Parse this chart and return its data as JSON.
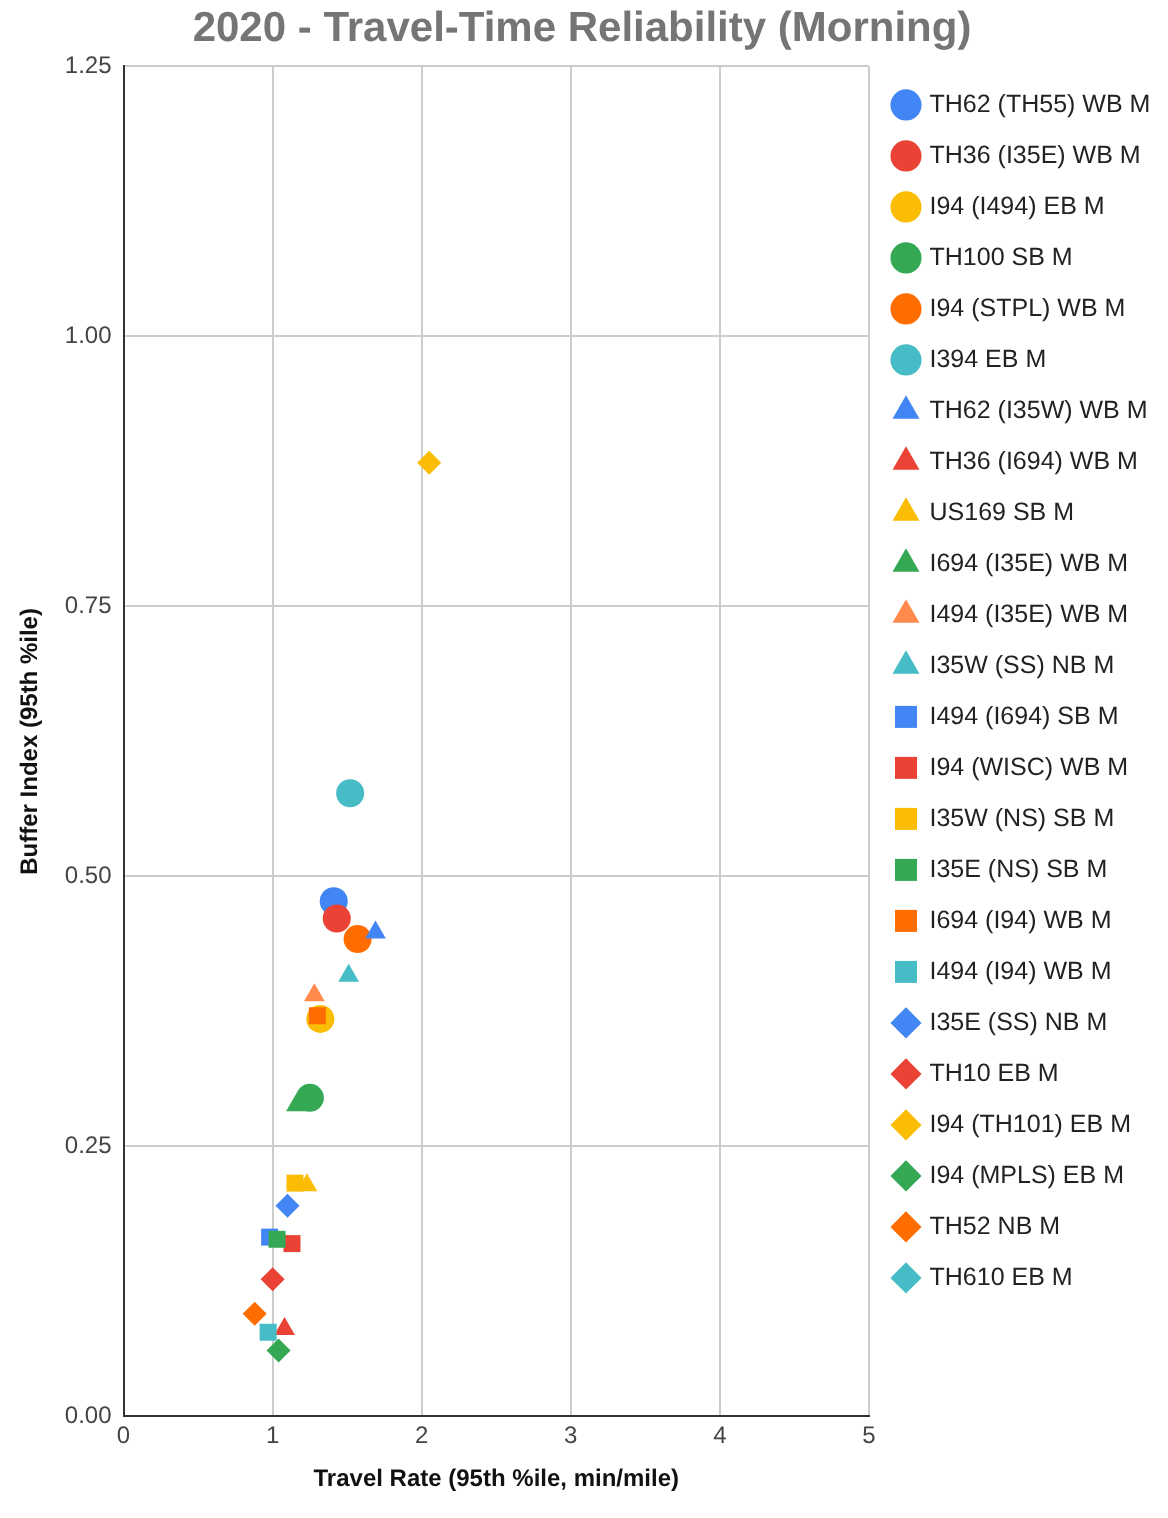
{
  "chart_data": {
    "type": "scatter",
    "title": "2020 - Travel-Time Reliability (Morning)",
    "xlabel": "Travel Rate (95th %ile, min/mile)",
    "ylabel": "Buffer Index (95th %ile)",
    "xlim": [
      0,
      5
    ],
    "xticks": [
      0,
      1,
      2,
      3,
      4,
      5
    ],
    "ylim": [
      0,
      1.25
    ],
    "yticks": [
      {
        "value": 0,
        "label": "0.00"
      },
      {
        "value": 0.25,
        "label": "0.25"
      },
      {
        "value": 0.5,
        "label": "0.50"
      },
      {
        "value": 0.75,
        "label": "0.75"
      },
      {
        "value": 1,
        "label": "1.00"
      },
      {
        "value": 1.25,
        "label": "1.25"
      }
    ],
    "grid": true,
    "legend": "right",
    "series": [
      {
        "name": "TH62 (TH55) WB M",
        "color": "#4285f4",
        "marker": "circle",
        "x": [
          1.41
        ],
        "values": [
          0.477
        ]
      },
      {
        "name": "TH36 (I35E) WB M",
        "color": "#ea4335",
        "marker": "circle",
        "x": [
          1.43
        ],
        "values": [
          0.461
        ]
      },
      {
        "name": "I94 (I494) EB M",
        "color": "#fbbc04",
        "marker": "circle",
        "x": [
          1.32
        ],
        "values": [
          0.368
        ]
      },
      {
        "name": "TH100 SB M",
        "color": "#34a853",
        "marker": "circle",
        "x": [
          1.25
        ],
        "values": [
          0.295
        ]
      },
      {
        "name": "I94 (STPL) WB M",
        "color": "#ff6d01",
        "marker": "circle",
        "x": [
          1.57
        ],
        "values": [
          0.442
        ]
      },
      {
        "name": "I394 EB M",
        "color": "#46bdc6",
        "marker": "circle",
        "x": [
          1.52
        ],
        "values": [
          0.577
        ]
      },
      {
        "name": "TH62 (I35W) WB M",
        "color": "#4285f4",
        "marker": "triangle",
        "x": [
          1.69
        ],
        "values": [
          0.448
        ]
      },
      {
        "name": "TH36 (I694) WB M",
        "color": "#ea4335",
        "marker": "triangle",
        "x": [
          1.08
        ],
        "values": [
          0.081
        ]
      },
      {
        "name": "US169 SB M",
        "color": "#fbbc04",
        "marker": "triangle",
        "x": [
          1.23
        ],
        "values": [
          0.214
        ]
      },
      {
        "name": "I694 (I35E) WB M",
        "color": "#34a853",
        "marker": "triangle",
        "x": [
          1.16
        ],
        "values": [
          0.288
        ]
      },
      {
        "name": "I494 (I35E) WB M",
        "color": "#ff8a4c",
        "marker": "triangle",
        "x": [
          1.28
        ],
        "values": [
          0.39
        ]
      },
      {
        "name": "I35W (SS) NB M",
        "color": "#46bdc6",
        "marker": "triangle",
        "x": [
          1.51
        ],
        "values": [
          0.408
        ]
      },
      {
        "name": "I494 (I694) SB M",
        "color": "#4285f4",
        "marker": "square",
        "x": [
          0.98
        ],
        "values": [
          0.166
        ]
      },
      {
        "name": "I94 (WISC) WB M",
        "color": "#ea4335",
        "marker": "square",
        "x": [
          1.13
        ],
        "values": [
          0.16
        ]
      },
      {
        "name": "I35W (NS) SB M",
        "color": "#fbbc04",
        "marker": "square",
        "x": [
          1.15
        ],
        "values": [
          0.216
        ]
      },
      {
        "name": "I35E (NS) SB M",
        "color": "#34a853",
        "marker": "square",
        "x": [
          1.03
        ],
        "values": [
          0.164
        ]
      },
      {
        "name": "I694 (I94) WB M",
        "color": "#ff6d01",
        "marker": "square",
        "x": [
          1.3
        ],
        "values": [
          0.371
        ]
      },
      {
        "name": "I494 (I94) WB M",
        "color": "#46bdc6",
        "marker": "square",
        "x": [
          0.97
        ],
        "values": [
          0.078
        ]
      },
      {
        "name": "I35E (SS) NB M",
        "color": "#4285f4",
        "marker": "diamond",
        "x": [
          1.1
        ],
        "values": [
          0.195
        ]
      },
      {
        "name": "TH10 EB M",
        "color": "#ea4335",
        "marker": "diamond",
        "x": [
          1.0
        ],
        "values": [
          0.127
        ]
      },
      {
        "name": "I94 (TH101) EB M",
        "color": "#fbbc04",
        "marker": "diamond",
        "x": [
          2.05
        ],
        "values": [
          0.883
        ]
      },
      {
        "name": "I94 (MPLS) EB M",
        "color": "#34a853",
        "marker": "diamond",
        "x": [
          1.04
        ],
        "values": [
          0.061
        ]
      },
      {
        "name": "TH52 NB M",
        "color": "#ff6d01",
        "marker": "diamond",
        "x": [
          0.88
        ],
        "values": [
          0.095
        ]
      },
      {
        "name": "TH610 EB M",
        "color": "#46bdc6",
        "marker": "diamond",
        "x": [
          null
        ],
        "values": [
          null
        ]
      }
    ]
  }
}
